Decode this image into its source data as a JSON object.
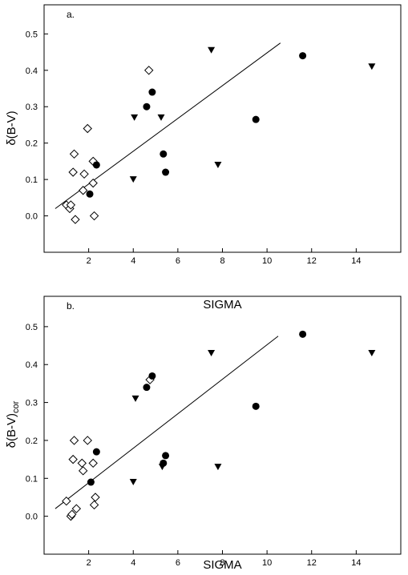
{
  "chart_data": [
    {
      "type": "scatter",
      "panel_label": "a.",
      "xlabel": "SIGMA",
      "ylabel": "δ(B-V)",
      "ylabel_sub": "",
      "xlim": [
        0,
        16
      ],
      "ylim": [
        -0.1,
        0.58
      ],
      "xticks": [
        "2",
        "4",
        "6",
        "8",
        "10",
        "12",
        "14"
      ],
      "yticks": [
        "0.0",
        "0.1",
        "0.2",
        "0.3",
        "0.4",
        "0.5"
      ],
      "grid": false,
      "series": [
        {
          "marker": "diamond-open",
          "points": [
            [
              1.0,
              0.03
            ],
            [
              1.15,
              0.02
            ],
            [
              1.2,
              0.03
            ],
            [
              1.3,
              0.12
            ],
            [
              1.35,
              0.17
            ],
            [
              1.4,
              -0.01
            ],
            [
              1.75,
              0.07
            ],
            [
              1.8,
              0.115
            ],
            [
              1.95,
              0.24
            ],
            [
              2.2,
              0.15
            ],
            [
              2.2,
              0.09
            ],
            [
              2.25,
              0.0
            ],
            [
              4.7,
              0.4
            ]
          ]
        },
        {
          "marker": "circle-filled",
          "points": [
            [
              2.05,
              0.06
            ],
            [
              2.35,
              0.14
            ],
            [
              4.6,
              0.3
            ],
            [
              4.85,
              0.34
            ],
            [
              5.35,
              0.17
            ],
            [
              5.45,
              0.12
            ],
            [
              9.5,
              0.265
            ],
            [
              11.6,
              0.44
            ]
          ]
        },
        {
          "marker": "triangle-down-filled",
          "points": [
            [
              4.0,
              0.1
            ],
            [
              4.05,
              0.27
            ],
            [
              5.25,
              0.27
            ],
            [
              7.5,
              0.455
            ],
            [
              7.8,
              0.14
            ],
            [
              14.7,
              0.41
            ]
          ]
        }
      ],
      "fit_line": [
        [
          0.5,
          0.02
        ],
        [
          10.6,
          0.475
        ]
      ]
    },
    {
      "type": "scatter",
      "panel_label": "b.",
      "xlabel": "SIGMA",
      "ylabel": "δ(B-V)",
      "ylabel_sub": "cor",
      "xlim": [
        0,
        16
      ],
      "ylim": [
        -0.1,
        0.58
      ],
      "xticks": [
        "2",
        "4",
        "6",
        "8",
        "10",
        "12",
        "14"
      ],
      "yticks": [
        "0.0",
        "0.1",
        "0.2",
        "0.3",
        "0.4",
        "0.5"
      ],
      "grid": false,
      "series": [
        {
          "marker": "diamond-open",
          "points": [
            [
              1.0,
              0.04
            ],
            [
              1.2,
              0.0
            ],
            [
              1.25,
              0.005
            ],
            [
              1.3,
              0.15
            ],
            [
              1.35,
              0.2
            ],
            [
              1.45,
              0.02
            ],
            [
              1.7,
              0.14
            ],
            [
              1.75,
              0.12
            ],
            [
              1.95,
              0.2
            ],
            [
              2.2,
              0.14
            ],
            [
              2.25,
              0.03
            ],
            [
              2.3,
              0.05
            ],
            [
              4.75,
              0.36
            ]
          ]
        },
        {
          "marker": "circle-filled",
          "points": [
            [
              2.1,
              0.09
            ],
            [
              2.35,
              0.17
            ],
            [
              4.6,
              0.34
            ],
            [
              4.85,
              0.37
            ],
            [
              5.35,
              0.14
            ],
            [
              5.45,
              0.16
            ],
            [
              9.5,
              0.29
            ],
            [
              11.6,
              0.48
            ]
          ]
        },
        {
          "marker": "triangle-down-filled",
          "points": [
            [
              4.0,
              0.09
            ],
            [
              4.1,
              0.31
            ],
            [
              5.3,
              0.13
            ],
            [
              7.5,
              0.43
            ],
            [
              7.8,
              0.13
            ],
            [
              14.7,
              0.43
            ]
          ]
        }
      ],
      "fit_line": [
        [
          0.5,
          0.02
        ],
        [
          10.5,
          0.475
        ]
      ]
    }
  ]
}
